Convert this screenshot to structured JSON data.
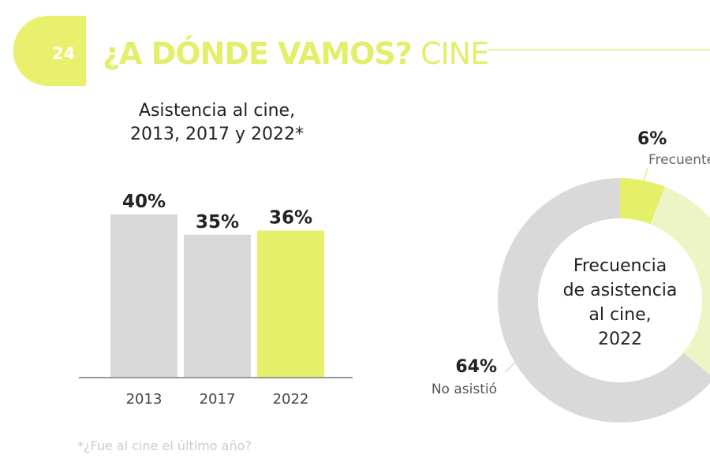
{
  "header": {
    "page_number": "24",
    "title_bold": "¿A DÓNDE VAMOS?",
    "title_light": "CINE"
  },
  "colors": {
    "accent": "#e6ef6a",
    "light_accent": "#eef5c4",
    "gray": "#d9d9d9"
  },
  "chart_data": [
    {
      "type": "bar",
      "title": "Asistencia al cine, 2013, 2017 y 2022*",
      "title_lines": [
        "Asistencia al cine,",
        "2013, 2017 y 2022*"
      ],
      "categories": [
        "2013",
        "2017",
        "2022"
      ],
      "values": [
        40,
        35,
        36
      ],
      "data_labels": [
        "40%",
        "35%",
        "36%"
      ],
      "highlight": "2022",
      "ylim": [
        0,
        45
      ],
      "grid": false,
      "footnote": "*¿Fue al cine el último año?"
    },
    {
      "type": "pie",
      "style": "donut",
      "title_lines": [
        "Frecuencia",
        "de asistencia",
        "al cine,",
        "2022"
      ],
      "slices": [
        {
          "label": "Frecuente",
          "value": 6,
          "value_label": "6%",
          "color": "#e6ef6a"
        },
        {
          "value": 30,
          "color": "#eef5c4"
        },
        {
          "label": "No asistió",
          "value": 64,
          "value_label": "64%",
          "color": "#d9d9d9"
        }
      ]
    }
  ]
}
